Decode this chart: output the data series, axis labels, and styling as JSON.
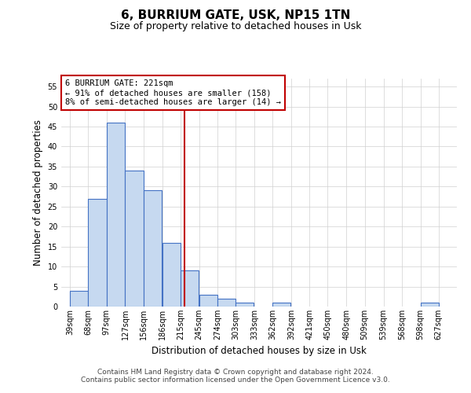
{
  "title": "6, BURRIUM GATE, USK, NP15 1TN",
  "subtitle": "Size of property relative to detached houses in Usk",
  "xlabel": "Distribution of detached houses by size in Usk",
  "ylabel": "Number of detached properties",
  "bar_left_edges": [
    39,
    68,
    97,
    127,
    156,
    186,
    215,
    245,
    274,
    303,
    333,
    362,
    392,
    421,
    450,
    480,
    509,
    539,
    568,
    598
  ],
  "bar_heights": [
    4,
    27,
    46,
    34,
    29,
    16,
    9,
    3,
    2,
    1,
    0,
    1,
    0,
    0,
    0,
    0,
    0,
    0,
    0,
    1
  ],
  "bin_width": 29,
  "bar_color": "#c6d9f0",
  "bar_edge_color": "#4472c4",
  "ylim": [
    0,
    57
  ],
  "yticks": [
    0,
    5,
    10,
    15,
    20,
    25,
    30,
    35,
    40,
    45,
    50,
    55
  ],
  "x_labels": [
    "39sqm",
    "68sqm",
    "97sqm",
    "127sqm",
    "156sqm",
    "186sqm",
    "215sqm",
    "245sqm",
    "274sqm",
    "303sqm",
    "333sqm",
    "362sqm",
    "392sqm",
    "421sqm",
    "450sqm",
    "480sqm",
    "509sqm",
    "539sqm",
    "568sqm",
    "598sqm",
    "627sqm"
  ],
  "x_tick_positions": [
    39,
    68,
    97,
    127,
    156,
    186,
    215,
    245,
    274,
    303,
    333,
    362,
    392,
    421,
    450,
    480,
    509,
    539,
    568,
    598,
    627
  ],
  "vline_x": 221,
  "vline_color": "#c00000",
  "annotation_title": "6 BURRIUM GATE: 221sqm",
  "annotation_line1": "← 91% of detached houses are smaller (158)",
  "annotation_line2": "8% of semi-detached houses are larger (14) →",
  "annotation_box_color": "#c00000",
  "annotation_bg": "#ffffff",
  "footer1": "Contains HM Land Registry data © Crown copyright and database right 2024.",
  "footer2": "Contains public sector information licensed under the Open Government Licence v3.0.",
  "background_color": "#ffffff",
  "grid_color": "#d0d0d0",
  "title_fontsize": 11,
  "subtitle_fontsize": 9,
  "axis_label_fontsize": 8.5,
  "tick_fontsize": 7,
  "footer_fontsize": 6.5,
  "annot_fontsize": 7.5
}
